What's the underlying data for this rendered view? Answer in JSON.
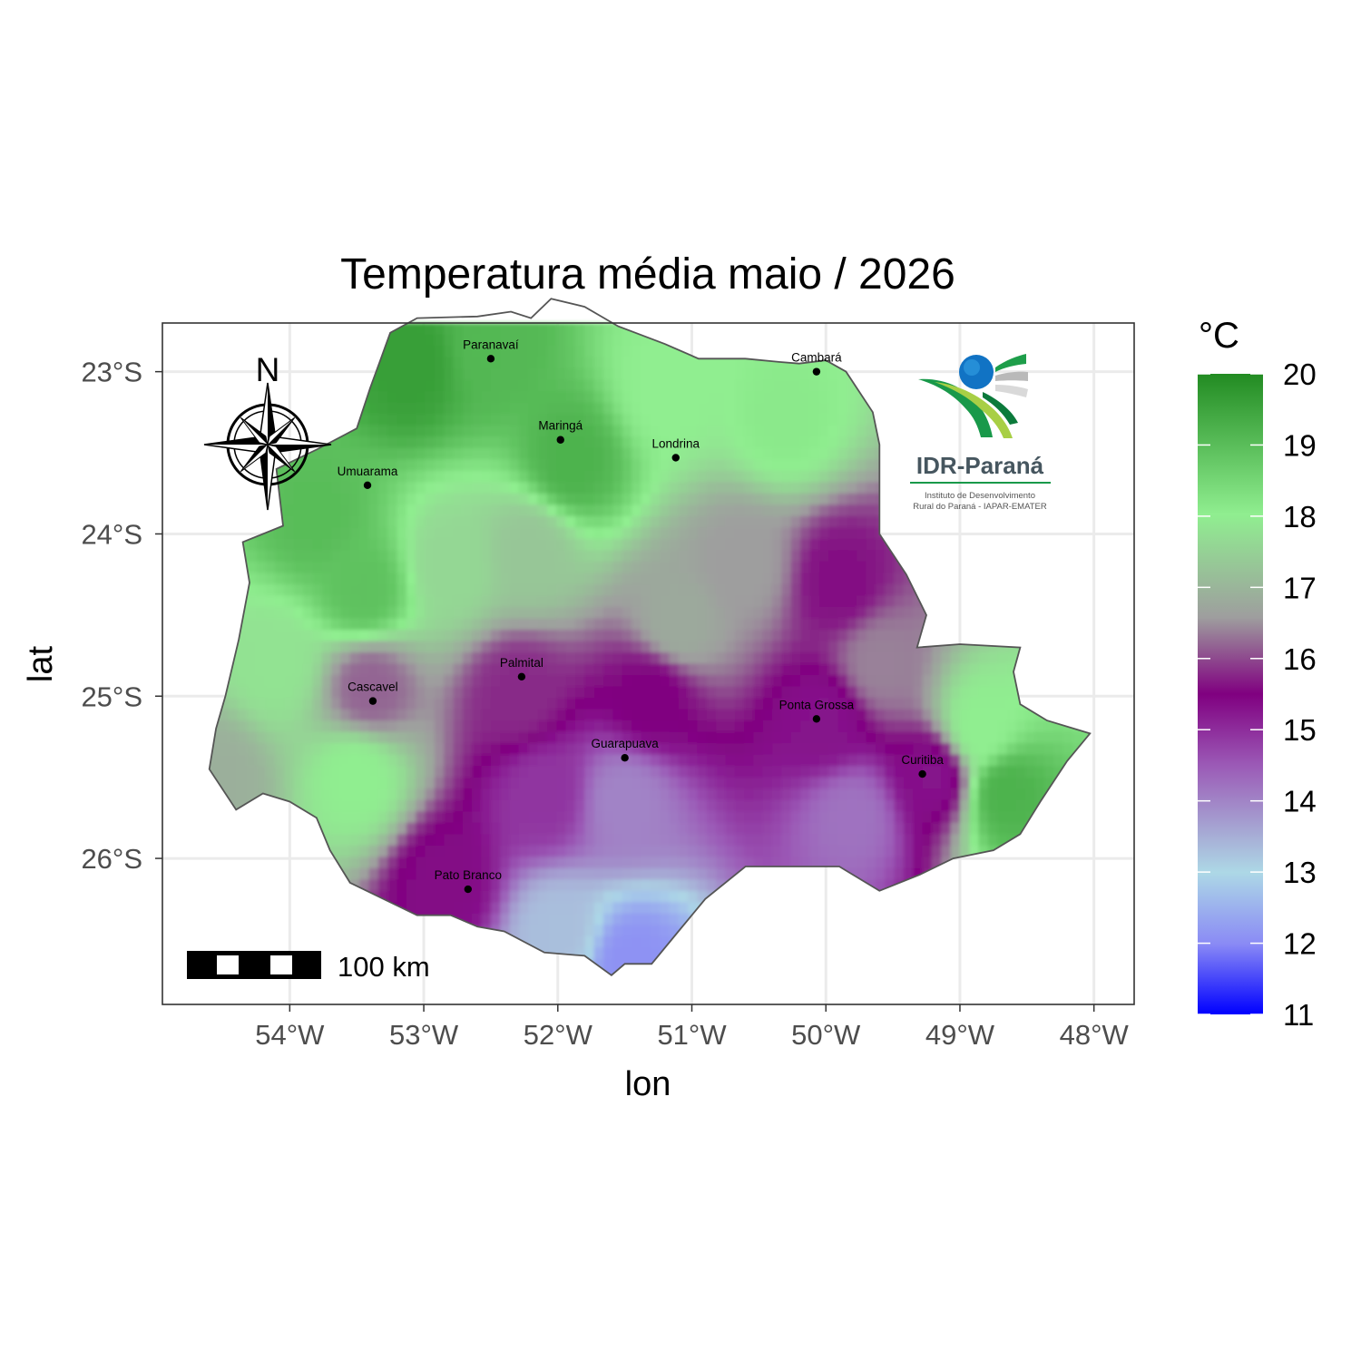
{
  "title": "Temperatura média maio / 2026",
  "colors": {
    "panel_border": "#333333",
    "grid": "#ebebeb",
    "state_outline": "#555555",
    "palette": [
      "#0000ff",
      "#8888ff",
      "#add8e6",
      "#9b59b6",
      "#800080",
      "#9e9e9e",
      "#90ee90",
      "#228b22"
    ]
  },
  "chart_data": {
    "type": "heatmap",
    "title": "Temperatura média maio / 2026",
    "xlabel": "lon",
    "ylabel": "lat",
    "xlim": [
      -54.95,
      -47.7
    ],
    "ylim": [
      -26.9,
      -22.7
    ],
    "x_ticks": [
      {
        "value": -54,
        "label": "54°W"
      },
      {
        "value": -53,
        "label": "53°W"
      },
      {
        "value": -52,
        "label": "52°W"
      },
      {
        "value": -51,
        "label": "51°W"
      },
      {
        "value": -50,
        "label": "50°W"
      },
      {
        "value": -49,
        "label": "49°W"
      },
      {
        "value": -48,
        "label": "48°W"
      }
    ],
    "y_ticks": [
      {
        "value": -23,
        "label": "23°S"
      },
      {
        "value": -24,
        "label": "24°S"
      },
      {
        "value": -25,
        "label": "25°S"
      },
      {
        "value": -26,
        "label": "26°S"
      }
    ],
    "grid": true,
    "legend": {
      "title": "°C",
      "position": "right",
      "min": 11,
      "max": 20,
      "ticks": [
        11,
        12,
        13,
        14,
        15,
        16,
        17,
        18,
        19,
        20
      ]
    },
    "cities": [
      {
        "name": "Paranavaí",
        "lon": -52.5,
        "lat": -22.92
      },
      {
        "name": "Cambará",
        "lon": -50.07,
        "lat": -23.0
      },
      {
        "name": "Maringá",
        "lon": -51.98,
        "lat": -23.42
      },
      {
        "name": "Londrina",
        "lon": -51.12,
        "lat": -23.53
      },
      {
        "name": "Umuarama",
        "lon": -53.42,
        "lat": -23.7
      },
      {
        "name": "Palmital",
        "lon": -52.27,
        "lat": -24.88
      },
      {
        "name": "Cascavel",
        "lon": -53.38,
        "lat": -25.03
      },
      {
        "name": "Ponta Grossa",
        "lon": -50.07,
        "lat": -25.14
      },
      {
        "name": "Guarapuava",
        "lon": -51.5,
        "lat": -25.38
      },
      {
        "name": "Curitiba",
        "lon": -49.28,
        "lat": -25.48
      },
      {
        "name": "Pato Branco",
        "lon": -52.67,
        "lat": -26.19
      }
    ],
    "temperature_field": [
      {
        "lon": -53.1,
        "lat": -22.95,
        "value": 19.6
      },
      {
        "lon": -52.5,
        "lat": -22.85,
        "value": 19.1
      },
      {
        "lon": -51.9,
        "lat": -23.55,
        "value": 19.2
      },
      {
        "lon": -53.8,
        "lat": -23.9,
        "value": 19.0
      },
      {
        "lon": -53.45,
        "lat": -24.35,
        "value": 18.9
      },
      {
        "lon": -51.2,
        "lat": -23.1,
        "value": 18.0
      },
      {
        "lon": -50.3,
        "lat": -23.3,
        "value": 18.1
      },
      {
        "lon": -52.8,
        "lat": -24.2,
        "value": 17.6
      },
      {
        "lon": -54.1,
        "lat": -24.8,
        "value": 17.8
      },
      {
        "lon": -53.5,
        "lat": -25.5,
        "value": 18.0
      },
      {
        "lon": -53.4,
        "lat": -24.95,
        "value": 16.2
      },
      {
        "lon": -52.2,
        "lat": -24.1,
        "value": 17.3
      },
      {
        "lon": -51.1,
        "lat": -24.55,
        "value": 16.8
      },
      {
        "lon": -50.6,
        "lat": -24.2,
        "value": 16.6
      },
      {
        "lon": -49.9,
        "lat": -24.3,
        "value": 15.6
      },
      {
        "lon": -49.6,
        "lat": -24.8,
        "value": 16.4
      },
      {
        "lon": -52.3,
        "lat": -25.0,
        "value": 15.8
      },
      {
        "lon": -51.3,
        "lat": -25.0,
        "value": 15.5
      },
      {
        "lon": -50.0,
        "lat": -25.15,
        "value": 15.3
      },
      {
        "lon": -51.5,
        "lat": -25.65,
        "value": 14.0
      },
      {
        "lon": -49.8,
        "lat": -25.75,
        "value": 14.2
      },
      {
        "lon": -52.1,
        "lat": -25.6,
        "value": 14.9
      },
      {
        "lon": -49.2,
        "lat": -25.5,
        "value": 15.3
      },
      {
        "lon": -52.85,
        "lat": -26.15,
        "value": 15.4
      },
      {
        "lon": -52.0,
        "lat": -26.45,
        "value": 13.3
      },
      {
        "lon": -51.45,
        "lat": -26.65,
        "value": 12.1
      },
      {
        "lon": -48.65,
        "lat": -25.6,
        "value": 19.2
      },
      {
        "lon": -48.85,
        "lat": -25.2,
        "value": 18.0
      },
      {
        "lon": -54.55,
        "lat": -25.5,
        "value": 16.9
      }
    ]
  },
  "north_arrow": {
    "label": "N"
  },
  "scale_bar": {
    "label": "100 km"
  },
  "logo": {
    "name": "IDR-Paraná",
    "subtitle_line1": "Instituto de Desenvolvimento",
    "subtitle_line2": "Rural do Paraná - IAPAR-EMATER"
  }
}
